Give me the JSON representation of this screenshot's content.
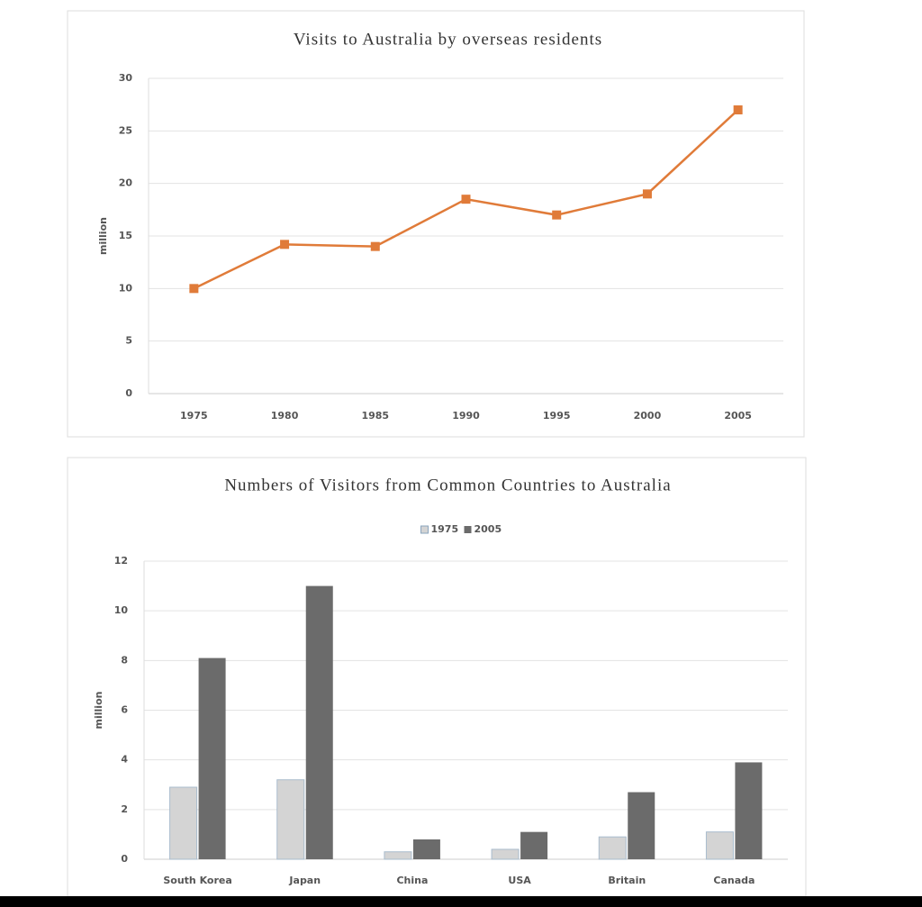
{
  "chart_data": [
    {
      "type": "line",
      "title": "Visits to Australia by overseas residents",
      "y_label": "million",
      "categories": [
        "1975",
        "1980",
        "1985",
        "1990",
        "1995",
        "2000",
        "2005"
      ],
      "series": [
        {
          "color": "#e07b39",
          "values": [
            10,
            14.2,
            14,
            18.5,
            17,
            19,
            27
          ]
        }
      ],
      "ylim": [
        0,
        30
      ],
      "yticks": [
        0,
        5,
        10,
        15,
        20,
        25,
        30
      ],
      "grid": true
    },
    {
      "type": "bar",
      "title": "Numbers of Visitors from Common Countries to Australia",
      "y_label": "million",
      "categories": [
        "South Korea",
        "Japan",
        "China",
        "USA",
        "Britain",
        "Canada"
      ],
      "series": [
        {
          "name": "1975",
          "color": "#d4d4d4",
          "values": [
            2.9,
            3.2,
            0.3,
            0.4,
            0.9,
            1.1
          ]
        },
        {
          "name": "2005",
          "color": "#6b6b6b",
          "values": [
            8.1,
            11,
            0.8,
            1.1,
            2.7,
            3.9
          ]
        }
      ],
      "ylim": [
        0,
        12
      ],
      "yticks": [
        0,
        2,
        4,
        6,
        8,
        10,
        12
      ],
      "grid": true,
      "legend": "top"
    }
  ]
}
